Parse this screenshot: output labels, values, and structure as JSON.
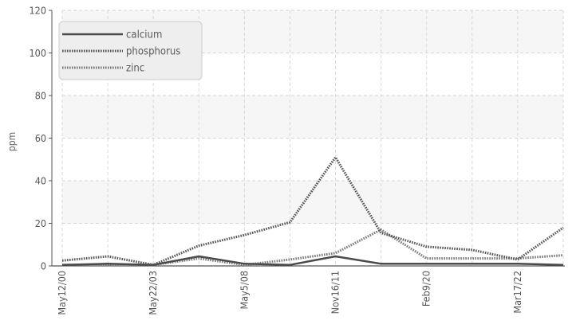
{
  "chart_data": {
    "type": "line",
    "title": "",
    "xlabel": "",
    "ylabel": "ppm",
    "ylim": [
      0,
      120
    ],
    "yticks": [
      0,
      20,
      40,
      60,
      80,
      100,
      120
    ],
    "x_tick_labels": [
      "May12/00",
      "May22/03",
      "May5/08",
      "Nov16/11",
      "Feb9/20",
      "Mar17/22"
    ],
    "categories": [
      "May12/00",
      "",
      "May22/03",
      "",
      "May5/08",
      "",
      "Nov16/11",
      "",
      "Feb9/20",
      "",
      "Mar17/22",
      ""
    ],
    "grid": true,
    "legend_position": "top-left",
    "series": [
      {
        "name": "calcium",
        "color": "#4a4a4a",
        "style": "solid",
        "values": [
          0.5,
          1,
          0.5,
          4.5,
          1,
          0.5,
          4.5,
          1,
          1,
          1,
          1,
          0.5
        ]
      },
      {
        "name": "phosphorus",
        "color": "#555555",
        "style": "dotted",
        "values": [
          2.5,
          4.5,
          0.5,
          9.5,
          14.5,
          20.5,
          51,
          15.5,
          9,
          7.5,
          3,
          18
        ]
      },
      {
        "name": "zinc",
        "color": "#7a7a7a",
        "style": "dotted",
        "values": [
          0.5,
          0.5,
          0.5,
          3.5,
          0.5,
          3,
          6,
          17,
          3.5,
          3.5,
          3.5,
          5
        ]
      }
    ]
  }
}
